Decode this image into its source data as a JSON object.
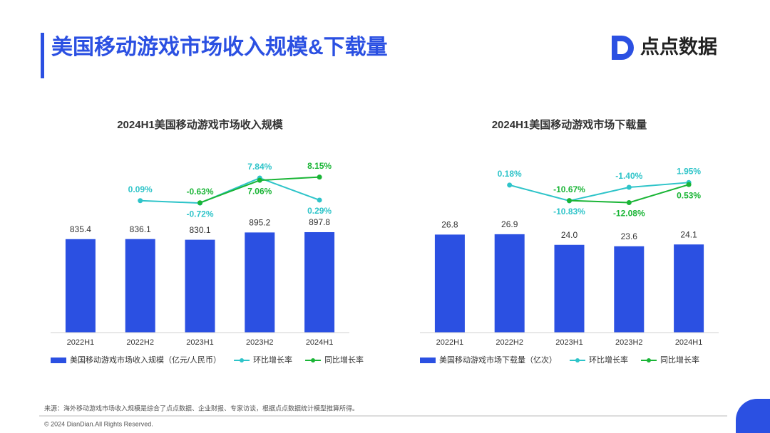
{
  "header": {
    "title": "美国移动游戏市场收入规模&下载量",
    "logo": "点点数据"
  },
  "chart_data": [
    {
      "type": "bar-line",
      "title": "2024H1美国移动游戏市场收入规模",
      "categories": [
        "2022H1",
        "2022H2",
        "2023H1",
        "2023H2",
        "2024H1"
      ],
      "ylim": [
        0,
        1700
      ],
      "y2lim": [
        -45,
        20
      ],
      "series": [
        {
          "name": "美国移动游戏市场收入规模（亿元/人民币）",
          "type": "bar",
          "color": "#2b50e2",
          "values": [
            835.4,
            836.1,
            830.1,
            895.2,
            897.8
          ],
          "value_labels": [
            "835.4",
            "836.1",
            "830.1",
            "895.2",
            "897.8"
          ]
        },
        {
          "name": "环比增长率",
          "type": "line",
          "axis": "y2",
          "color": "#2ec4c9",
          "values": [
            null,
            0.09,
            -0.72,
            7.84,
            0.29
          ],
          "value_labels": [
            null,
            "0.09%",
            "-0.72%",
            "7.84%",
            "0.29%"
          ]
        },
        {
          "name": "同比增长率",
          "type": "line",
          "axis": "y2",
          "color": "#1ab536",
          "values": [
            null,
            null,
            -0.63,
            7.06,
            8.15
          ],
          "value_labels": [
            null,
            null,
            "-0.63%",
            "7.06%",
            "8.15%"
          ]
        }
      ]
    },
    {
      "type": "bar-line",
      "title": "2024H1美国移动游戏市场下载量",
      "categories": [
        "2022H1",
        "2022H2",
        "2023H1",
        "2023H2",
        "2024H1"
      ],
      "ylim": [
        0,
        52
      ],
      "y2lim": [
        -103,
        30
      ],
      "series": [
        {
          "name": "美国移动游戏市场下载量（亿次）",
          "type": "bar",
          "color": "#2b50e2",
          "values": [
            26.8,
            26.9,
            24.0,
            23.6,
            24.1
          ],
          "value_labels": [
            "26.8",
            "26.9",
            "24.0",
            "23.6",
            "24.1"
          ]
        },
        {
          "name": "环比增长率",
          "type": "line",
          "axis": "y2",
          "color": "#2ec4c9",
          "values": [
            null,
            0.18,
            -10.83,
            -1.4,
            1.95
          ],
          "value_labels": [
            null,
            "0.18%",
            "-10.83%",
            "-1.40%",
            "1.95%"
          ]
        },
        {
          "name": "同比增长率",
          "type": "line",
          "axis": "y2",
          "color": "#1ab536",
          "values": [
            null,
            null,
            -10.67,
            -12.08,
            0.53
          ],
          "value_labels": [
            null,
            null,
            "-10.67%",
            "-12.08%",
            "0.53%"
          ]
        }
      ]
    }
  ],
  "footer": {
    "source": "来源：海外移动游戏市场收入规模是综合了点点数据、企业财报、专家访谈，根据点点数据统计模型推算所得。",
    "copyright": "© 2024 DianDian.All Rights Reserved."
  }
}
